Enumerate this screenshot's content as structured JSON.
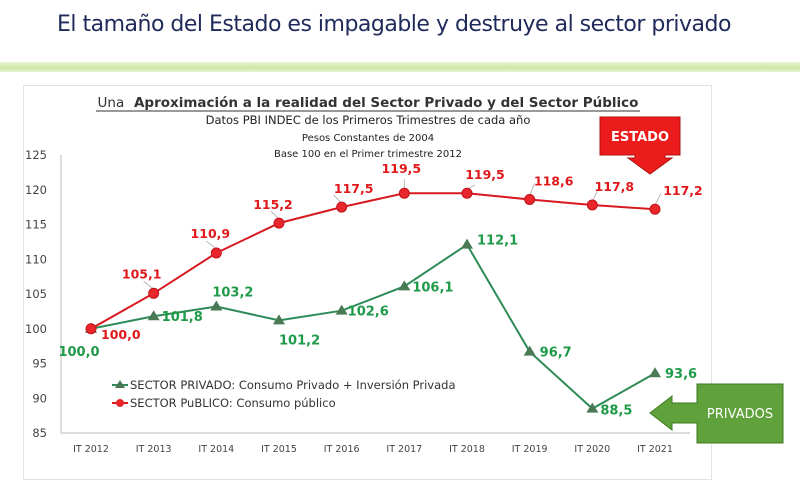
{
  "slide": {
    "title": "El tamaño del Estado es impagable y destruye al sector privado"
  },
  "chart_data": {
    "type": "line",
    "title_prefix": "Una",
    "title": "Aproximación a la realidad del Sector Privado y del Sector Público",
    "subtitle_lines": [
      "Datos PBI INDEC de los Primeros Trimestres de cada año",
      "Pesos Constantes de 2004",
      "Base 100 en el Primer trimestre 2012"
    ],
    "categories": [
      "IT 2012",
      "IT 2013",
      "IT 2014",
      "IT 2015",
      "IT 2016",
      "IT 2017",
      "IT 2018",
      "IT 2019",
      "IT 2020",
      "IT 2021"
    ],
    "yticks": [
      "125",
      "120",
      "115",
      "110",
      "105",
      "100",
      "95",
      "90",
      "85"
    ],
    "ylim": [
      85,
      125
    ],
    "xlabel": "",
    "ylabel": "",
    "grid": false,
    "legend_position": "bottom-left",
    "series": [
      {
        "name": "SECTOR PRIVADO: Consumo Privado + Inversión Privada",
        "marker": "triangle",
        "color": "#2e8b57",
        "label_color": "#1e9a48",
        "values": [
          100.0,
          101.8,
          103.2,
          101.2,
          102.6,
          106.1,
          112.1,
          96.7,
          88.5,
          93.6
        ],
        "labels": [
          "100,0",
          "101,8",
          "103,2",
          "101,2",
          "102,6",
          "106,1",
          "112,1",
          "96,7",
          "88,5",
          "93,6"
        ]
      },
      {
        "name": "SECTOR PuBLICO: Consumo público",
        "marker": "circle",
        "color": "#d71920",
        "label_color": "#e0181b",
        "values": [
          100.0,
          105.1,
          110.9,
          115.2,
          117.5,
          119.5,
          119.5,
          118.6,
          117.8,
          117.2
        ],
        "labels": [
          "100,0",
          "105,1",
          "110,9",
          "115,2",
          "117,5",
          "119,5",
          "119,5",
          "118,6",
          "117,8",
          "117,2"
        ]
      }
    ],
    "annotations": [
      {
        "text": "ESTADO",
        "color": "#ec1c1c",
        "direction": "down",
        "target": "SECTOR PuBLICO"
      },
      {
        "text": "PRIVADOS",
        "color": "#5fa13a",
        "direction": "left",
        "target": "SECTOR PRIVADO"
      }
    ]
  }
}
